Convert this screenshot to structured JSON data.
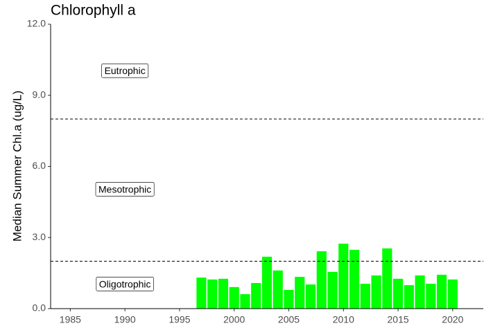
{
  "chart_data": {
    "type": "bar",
    "title": "Chlorophyll a",
    "ylabel": "Median Summer Chl.a (ug/L)",
    "x": [
      1997,
      1998,
      1999,
      2000,
      2001,
      2002,
      2003,
      2004,
      2005,
      2006,
      2007,
      2008,
      2009,
      2010,
      2011,
      2012,
      2013,
      2014,
      2015,
      2016,
      2017,
      2018,
      2019,
      2020
    ],
    "values": [
      1.31,
      1.23,
      1.26,
      0.91,
      0.61,
      1.08,
      2.19,
      1.61,
      0.79,
      1.34,
      1.02,
      2.42,
      1.55,
      2.74,
      2.48,
      1.05,
      1.4,
      2.54,
      1.26,
      0.99,
      1.4,
      1.05,
      1.43,
      1.23
    ],
    "color": "#00ff00",
    "xlim": [
      1983.2,
      2022.8
    ],
    "xticks": [
      1985,
      1990,
      1995,
      2000,
      2005,
      2010,
      2015,
      2020
    ],
    "ylim": [
      0,
      12
    ],
    "yticks": [
      {
        "value": 0,
        "label": "0.0"
      },
      {
        "value": 3,
        "label": "3.0"
      },
      {
        "value": 6,
        "label": "6.0"
      },
      {
        "value": 9,
        "label": "9.0"
      },
      {
        "value": 12,
        "label": "12.0"
      }
    ],
    "hlines": [
      2,
      8
    ],
    "annotations": [
      {
        "text": "Eutrophic",
        "x": 1990,
        "y": 10
      },
      {
        "text": "Mesotrophic",
        "x": 1990,
        "y": 5
      },
      {
        "text": "Oligotrophic",
        "x": 1990,
        "y": 1
      }
    ],
    "grid": false
  }
}
